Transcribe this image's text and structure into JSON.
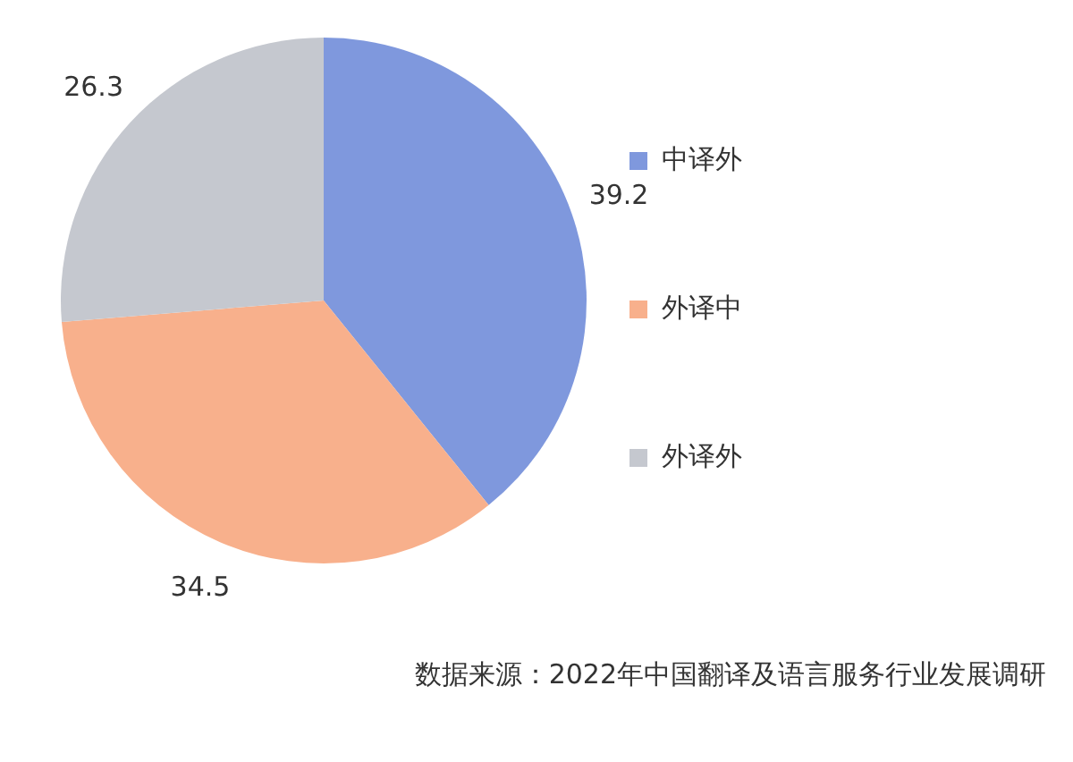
{
  "chart_data": {
    "type": "pie",
    "categories": [
      "中译外",
      "外译中",
      "外译外"
    ],
    "values": [
      39.2,
      34.5,
      26.3
    ],
    "colors": [
      "#7f98dd",
      "#f8b08c",
      "#c5c8cf"
    ],
    "data_labels": true,
    "legend": "right",
    "annotations": [
      "数据来源：2022年中国翻译及语言服务行业发展调研"
    ]
  }
}
